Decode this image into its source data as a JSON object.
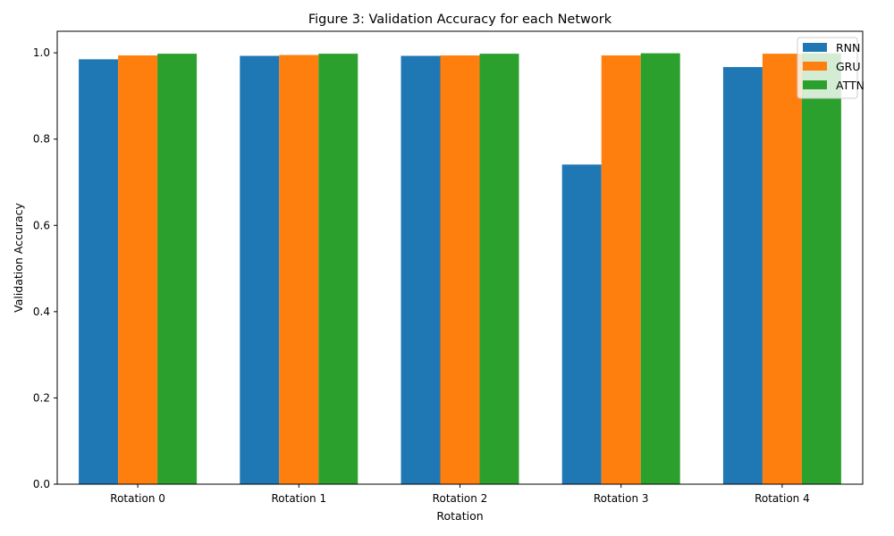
{
  "chart_data": {
    "type": "bar",
    "title": "Figure 3: Validation Accuracy for each Network",
    "xlabel": "Rotation",
    "ylabel": "Validation Accuracy",
    "categories": [
      "Rotation 0",
      "Rotation 1",
      "Rotation 2",
      "Rotation 3",
      "Rotation 4"
    ],
    "series": [
      {
        "name": "RNN",
        "color": "#1f77b4",
        "values": [
          0.985,
          0.993,
          0.993,
          0.741,
          0.967
        ]
      },
      {
        "name": "GRU",
        "color": "#ff7f0e",
        "values": [
          0.994,
          0.995,
          0.994,
          0.994,
          0.998
        ]
      },
      {
        "name": "ATTN",
        "color": "#2ca02c",
        "values": [
          0.998,
          0.998,
          0.998,
          0.999,
          0.999
        ]
      }
    ],
    "ylim": [
      0,
      1.05
    ],
    "yticks": [
      "0.0",
      "0.2",
      "0.4",
      "0.6",
      "0.8",
      "1.0"
    ],
    "grid": false,
    "legend_position": "top-right"
  }
}
